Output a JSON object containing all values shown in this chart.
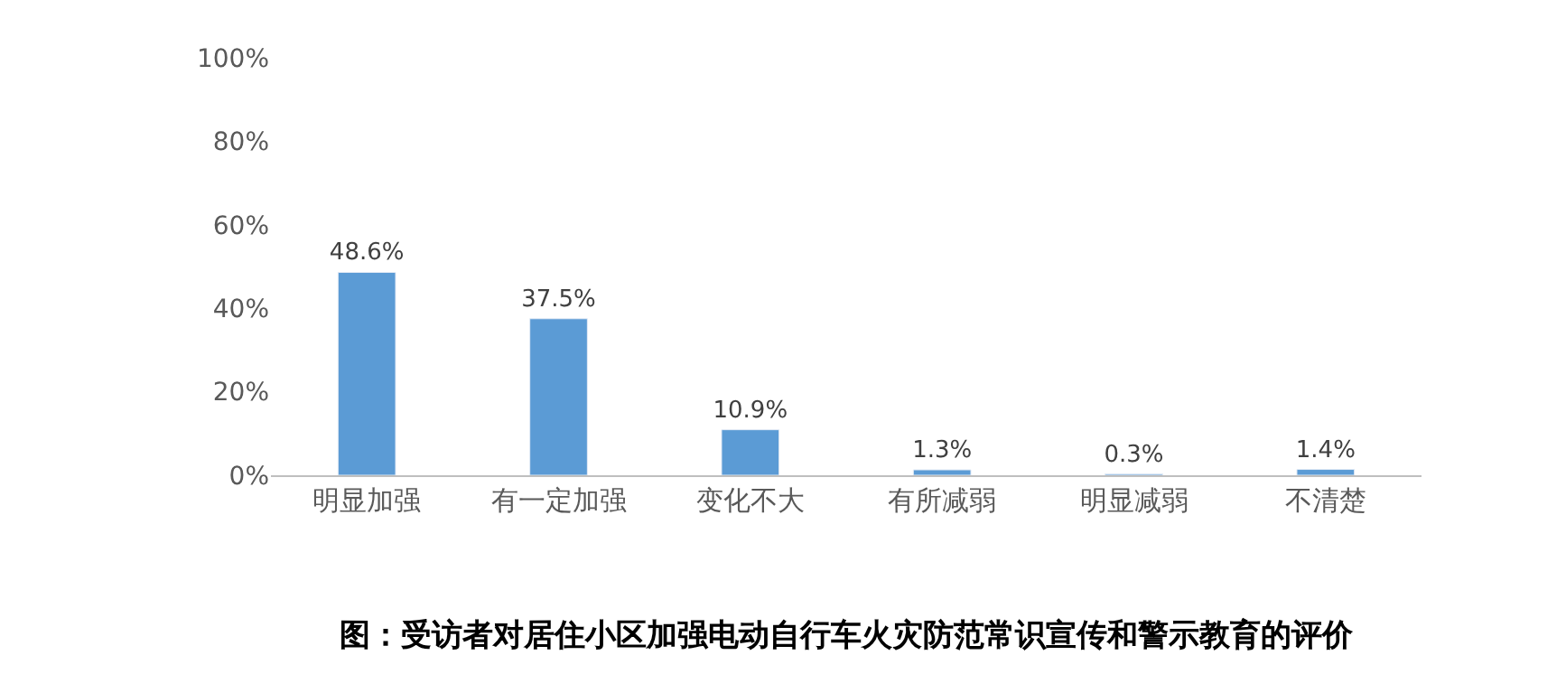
{
  "chart_data": {
    "type": "bar",
    "title": "图：受访者对居住小区加强电动自行车火灾防范常识宣传和警示教育的评价",
    "categories": [
      "明显加强",
      "有一定加强",
      "变化不大",
      "有所减弱",
      "明显减弱",
      "不清楚"
    ],
    "values": [
      48.6,
      37.5,
      10.9,
      1.3,
      0.3,
      1.4
    ],
    "value_labels": [
      "48.6%",
      "37.5%",
      "10.9%",
      "1.3%",
      "0.3%",
      "1.4%"
    ],
    "color": "#5b9bd5",
    "ylim": [
      0,
      100
    ],
    "yticks": [
      {
        "value": 0,
        "label": "0%"
      },
      {
        "value": 20,
        "label": "20%"
      },
      {
        "value": 40,
        "label": "40%"
      },
      {
        "value": 60,
        "label": "60%"
      },
      {
        "value": 80,
        "label": "80%"
      },
      {
        "value": 100,
        "label": "100%"
      }
    ],
    "legend": false
  }
}
